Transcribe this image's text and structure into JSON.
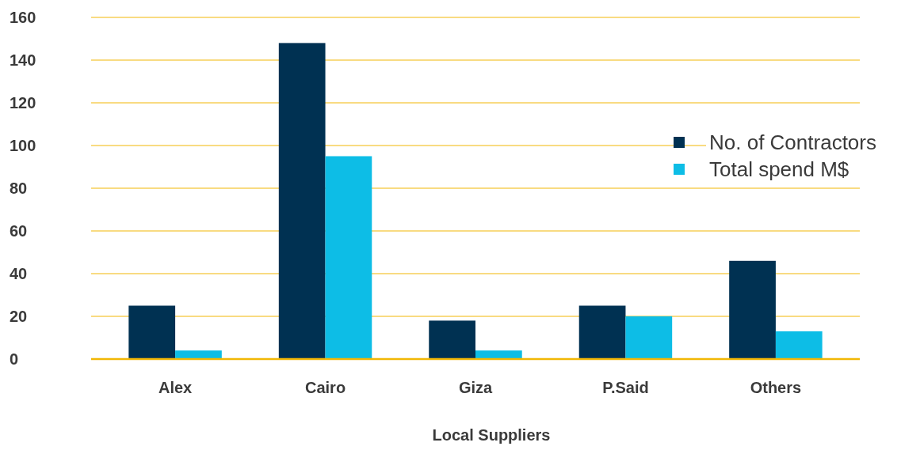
{
  "chart_data": {
    "type": "bar",
    "xlabel": "Local Suppliers",
    "categories": [
      "Alex",
      "Cairo",
      "Giza",
      "P.Said",
      "Others"
    ],
    "series": [
      {
        "name": "No. of Contractors",
        "color": "#003152",
        "values": [
          25,
          148,
          18,
          25,
          46
        ]
      },
      {
        "name": "Total spend M$",
        "color": "#0dbde6",
        "values": [
          4,
          95,
          4,
          20,
          13
        ]
      }
    ],
    "ylim": [
      0,
      160
    ],
    "yticks": [
      0,
      20,
      40,
      60,
      80,
      100,
      120,
      140,
      160
    ],
    "grid": "y",
    "legend": "right"
  }
}
